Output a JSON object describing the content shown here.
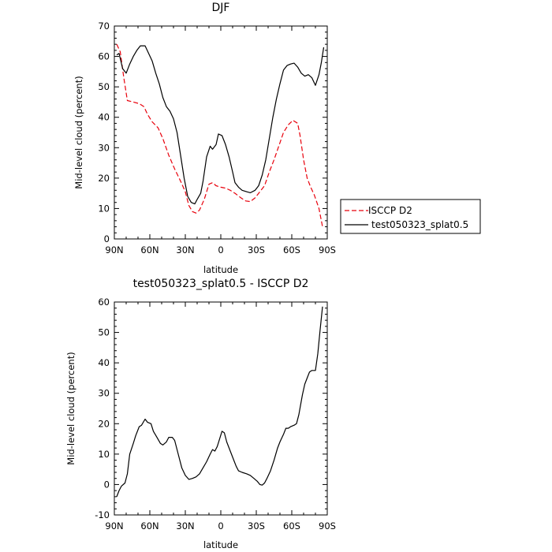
{
  "chart_data": [
    {
      "type": "line",
      "title": "DJF",
      "xlabel": "latitude",
      "ylabel": "Mid-level cloud (percent)",
      "xlim": [
        90,
        -90
      ],
      "ylim": [
        0,
        70
      ],
      "x_ticks": [
        90,
        60,
        30,
        0,
        -30,
        -60,
        -90
      ],
      "x_tick_labels": [
        "90N",
        "60N",
        "30N",
        "0",
        "30S",
        "60S",
        "90S"
      ],
      "y_ticks": [
        0,
        10,
        20,
        30,
        40,
        50,
        60,
        70
      ],
      "y_tick_labels": [
        "0",
        "10",
        "20",
        "30",
        "40",
        "50",
        "60",
        "70"
      ],
      "grid": false,
      "legend_position": "right",
      "series": [
        {
          "name": "ISCCP D2",
          "color": "#e8000b",
          "dash": "dashed",
          "points": [
            [
              88,
              64
            ],
            [
              85,
              61.5
            ],
            [
              82,
              53
            ],
            [
              79,
              45.5
            ],
            [
              74,
              45
            ],
            [
              69,
              44.5
            ],
            [
              65,
              43.5
            ],
            [
              62,
              41
            ],
            [
              58,
              38.5
            ],
            [
              53,
              36.5
            ],
            [
              49,
              33
            ],
            [
              44,
              27.5
            ],
            [
              39,
              23
            ],
            [
              34,
              19
            ],
            [
              30,
              15.5
            ],
            [
              27,
              11
            ],
            [
              24,
              9
            ],
            [
              21,
              8.5
            ],
            [
              18,
              9.5
            ],
            [
              14,
              13
            ],
            [
              10,
              18
            ],
            [
              7,
              18.5
            ],
            [
              4,
              17.5
            ],
            [
              0,
              17
            ],
            [
              -4,
              16.7
            ],
            [
              -8,
              16
            ],
            [
              -12,
              15
            ],
            [
              -17,
              13.5
            ],
            [
              -21,
              12.5
            ],
            [
              -25,
              12.3
            ],
            [
              -29,
              13.5
            ],
            [
              -33,
              15.5
            ],
            [
              -37,
              17.5
            ],
            [
              -41,
              22
            ],
            [
              -45,
              26
            ],
            [
              -49,
              30.5
            ],
            [
              -53,
              35
            ],
            [
              -57,
              37.5
            ],
            [
              -61,
              39
            ],
            [
              -65,
              38
            ],
            [
              -67,
              34
            ],
            [
              -70,
              26
            ],
            [
              -73,
              20
            ],
            [
              -76,
              17
            ],
            [
              -79,
              14.5
            ],
            [
              -83,
              10
            ],
            [
              -86,
              4
            ]
          ]
        },
        {
          "name": "test050323_splat0.5",
          "color": "#000000",
          "dash": "solid",
          "points": [
            [
              88,
              60.5
            ],
            [
              86,
              61
            ],
            [
              83,
              56
            ],
            [
              80,
              54.5
            ],
            [
              77,
              57.5
            ],
            [
              74,
              60
            ],
            [
              71,
              62
            ],
            [
              68,
              63.5
            ],
            [
              64,
              63.5
            ],
            [
              61,
              61
            ],
            [
              58,
              58.5
            ],
            [
              55,
              54.5
            ],
            [
              52,
              51
            ],
            [
              49,
              46.5
            ],
            [
              46,
              43.5
            ],
            [
              43,
              42
            ],
            [
              40,
              39.5
            ],
            [
              37,
              35
            ],
            [
              34,
              27.5
            ],
            [
              31,
              20
            ],
            [
              28,
              14
            ],
            [
              25,
              12
            ],
            [
              22,
              11.5
            ],
            [
              20,
              13
            ],
            [
              17,
              15
            ],
            [
              15,
              19
            ],
            [
              12,
              27
            ],
            [
              9,
              30.5
            ],
            [
              7,
              29.5
            ],
            [
              4,
              31
            ],
            [
              2,
              34.5
            ],
            [
              -1,
              34
            ],
            [
              -4,
              31
            ],
            [
              -7,
              27
            ],
            [
              -10,
              22
            ],
            [
              -12,
              18.5
            ],
            [
              -15,
              17
            ],
            [
              -18,
              16
            ],
            [
              -22,
              15.5
            ],
            [
              -25,
              15.2
            ],
            [
              -29,
              16
            ],
            [
              -32,
              17.5
            ],
            [
              -35,
              21
            ],
            [
              -38,
              26
            ],
            [
              -41,
              33
            ],
            [
              -44,
              40
            ],
            [
              -47,
              46
            ],
            [
              -50,
              51
            ],
            [
              -53,
              55.5
            ],
            [
              -56,
              57
            ],
            [
              -59,
              57.5
            ],
            [
              -62,
              57.8
            ],
            [
              -65,
              56.5
            ],
            [
              -68,
              54.5
            ],
            [
              -71,
              53.5
            ],
            [
              -74,
              54
            ],
            [
              -77,
              53
            ],
            [
              -80,
              50.5
            ],
            [
              -83,
              54
            ],
            [
              -85,
              58
            ],
            [
              -87,
              63
            ]
          ]
        }
      ]
    },
    {
      "type": "line",
      "title": "test050323_splat0.5 - ISCCP D2",
      "xlabel": "latitude",
      "ylabel": "Mid-level cloud (percent)",
      "xlim": [
        90,
        -90
      ],
      "ylim": [
        -10,
        60
      ],
      "x_ticks": [
        90,
        60,
        30,
        0,
        -30,
        -60,
        -90
      ],
      "x_tick_labels": [
        "90N",
        "60N",
        "30N",
        "0",
        "30S",
        "60S",
        "90S"
      ],
      "y_ticks": [
        -10,
        0,
        10,
        20,
        30,
        40,
        50,
        60
      ],
      "y_tick_labels": [
        "-10",
        "0",
        "10",
        "20",
        "30",
        "40",
        "50",
        "60"
      ],
      "grid": false,
      "series": [
        {
          "color": "#000000",
          "dash": "solid",
          "points": [
            [
              88,
              -4
            ],
            [
              86,
              -2
            ],
            [
              84,
              -0.5
            ],
            [
              81,
              0.5
            ],
            [
              79,
              3.5
            ],
            [
              77,
              10
            ],
            [
              74,
              13.5
            ],
            [
              72,
              16
            ],
            [
              69,
              19
            ],
            [
              67,
              19.5
            ],
            [
              64,
              21.5
            ],
            [
              62,
              20.5
            ],
            [
              59,
              20
            ],
            [
              57,
              17.5
            ],
            [
              54,
              15.5
            ],
            [
              51,
              13.5
            ],
            [
              49,
              13
            ],
            [
              46,
              14
            ],
            [
              44,
              15.5
            ],
            [
              41,
              15.5
            ],
            [
              39,
              14.5
            ],
            [
              36,
              10
            ],
            [
              33,
              5.5
            ],
            [
              30,
              3
            ],
            [
              27,
              1.7
            ],
            [
              24,
              2
            ],
            [
              21,
              2.5
            ],
            [
              18,
              3.5
            ],
            [
              15,
              5.5
            ],
            [
              12,
              7.5
            ],
            [
              9,
              10
            ],
            [
              7,
              11.5
            ],
            [
              5,
              11
            ],
            [
              3,
              12.5
            ],
            [
              1,
              15
            ],
            [
              -1,
              17.5
            ],
            [
              -3,
              17
            ],
            [
              -5,
              14
            ],
            [
              -8,
              11
            ],
            [
              -11,
              8
            ],
            [
              -13,
              6
            ],
            [
              -15,
              4.5
            ],
            [
              -18,
              4
            ],
            [
              -22,
              3.5
            ],
            [
              -25,
              3
            ],
            [
              -28,
              2
            ],
            [
              -31,
              1
            ],
            [
              -33,
              0
            ],
            [
              -35,
              -0.2
            ],
            [
              -37,
              0.5
            ],
            [
              -39,
              2
            ],
            [
              -42,
              4.5
            ],
            [
              -45,
              8
            ],
            [
              -48,
              12
            ],
            [
              -50,
              14
            ],
            [
              -53,
              16.5
            ],
            [
              -55,
              18.5
            ],
            [
              -57,
              18.5
            ],
            [
              -59,
              19
            ],
            [
              -62,
              19.5
            ],
            [
              -64,
              20
            ],
            [
              -66,
              23
            ],
            [
              -69,
              29.5
            ],
            [
              -71,
              33
            ],
            [
              -73,
              35
            ],
            [
              -75,
              37
            ],
            [
              -77,
              37.5
            ],
            [
              -80,
              37.5
            ],
            [
              -82,
              43
            ],
            [
              -84,
              51
            ],
            [
              -86,
              58.5
            ]
          ]
        }
      ]
    }
  ]
}
